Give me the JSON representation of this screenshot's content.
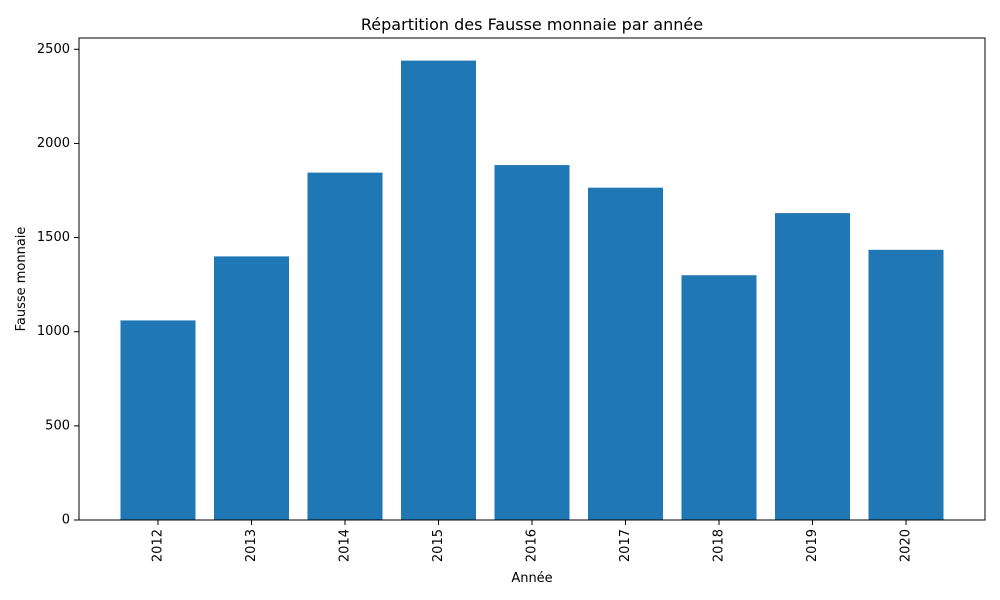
{
  "chart_data": {
    "type": "bar",
    "title": "Répartition des Fausse monnaie par année",
    "xlabel": "Année",
    "ylabel": "Fausse monnaie",
    "categories": [
      "2012",
      "2013",
      "2014",
      "2015",
      "2016",
      "2017",
      "2018",
      "2019",
      "2020"
    ],
    "values": [
      1060,
      1400,
      1845,
      2440,
      1885,
      1765,
      1300,
      1630,
      1435
    ],
    "ylim": [
      0,
      2560
    ],
    "yticks": [
      0,
      500,
      1000,
      1500,
      2000,
      2500
    ],
    "bar_color": "#1f77b4",
    "grid": false,
    "legend": "none"
  }
}
